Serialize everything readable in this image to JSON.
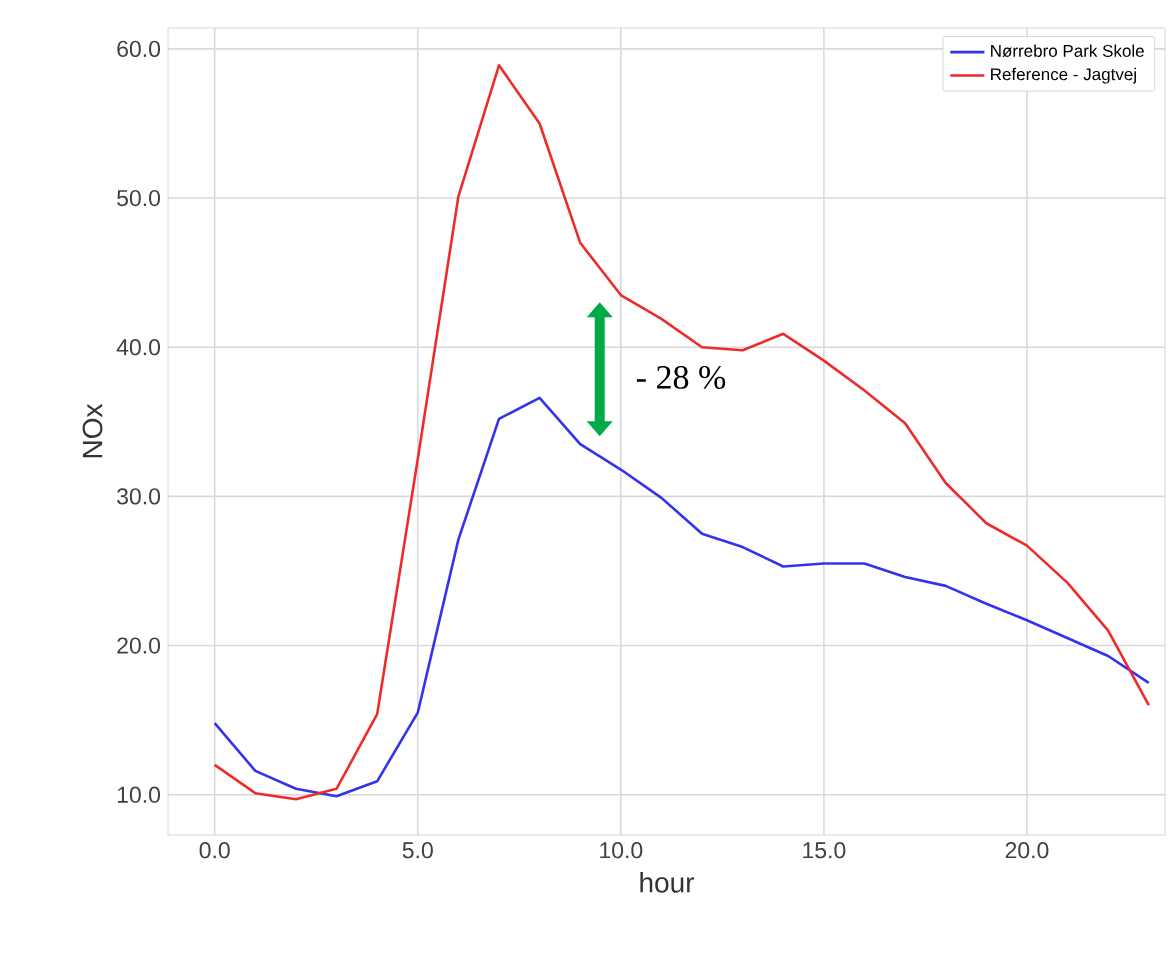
{
  "chart_data": {
    "type": "line",
    "xlabel": "hour",
    "ylabel": "NOx",
    "x": [
      0,
      1,
      2,
      3,
      4,
      5,
      6,
      7,
      8,
      9,
      10,
      11,
      12,
      13,
      14,
      15,
      16,
      17,
      18,
      19,
      20,
      21,
      22,
      23
    ],
    "series": [
      {
        "name": "Nørrebro Park Skole",
        "color": "#3333ee",
        "values": [
          14.8,
          11.6,
          10.4,
          9.9,
          10.9,
          15.5,
          27.1,
          35.2,
          36.6,
          33.5,
          31.8,
          29.9,
          27.5,
          26.6,
          25.3,
          25.5,
          25.5,
          24.6,
          24.0,
          22.8,
          21.7,
          20.5,
          19.3,
          17.5
        ]
      },
      {
        "name": "Reference - Jagtvej",
        "color": "#ee2b2b",
        "values": [
          12.0,
          10.1,
          9.7,
          10.4,
          15.4,
          32.5,
          50.1,
          58.9,
          55.0,
          47.0,
          43.5,
          41.9,
          40.0,
          39.8,
          40.9,
          39.1,
          37.1,
          34.9,
          30.9,
          28.2,
          26.7,
          24.2,
          21.0,
          16.0
        ]
      }
    ],
    "xlim": [
      -1.15,
      23.4
    ],
    "ylim": [
      7.3,
      61.4
    ],
    "xticks": [
      {
        "value": 0,
        "label": "0.0"
      },
      {
        "value": 5,
        "label": "5.0"
      },
      {
        "value": 10,
        "label": "10.0"
      },
      {
        "value": 15,
        "label": "15.0"
      },
      {
        "value": 20,
        "label": "20.0"
      }
    ],
    "yticks": [
      {
        "value": 10,
        "label": "10.0"
      },
      {
        "value": 20,
        "label": "20.0"
      },
      {
        "value": 30,
        "label": "30.0"
      },
      {
        "value": 40,
        "label": "40.0"
      },
      {
        "value": 50,
        "label": "50.0"
      },
      {
        "value": 60,
        "label": "60.0"
      }
    ],
    "annotations": [
      "- 28 %"
    ],
    "grid": true,
    "legend": "top right",
    "line_style": "solid",
    "marker": "none"
  }
}
